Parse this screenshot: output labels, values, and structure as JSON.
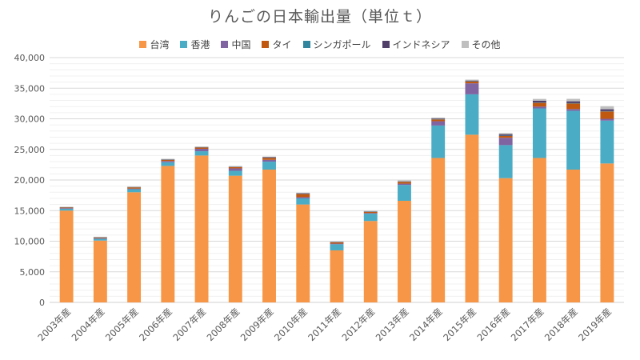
{
  "chart_data": {
    "type": "bar",
    "stacked": true,
    "title": "りんごの日本輸出量（単位ｔ）",
    "xlabel": "",
    "ylabel": "",
    "ylim": [
      0,
      40000
    ],
    "yticks": [
      0,
      5000,
      10000,
      15000,
      20000,
      25000,
      30000,
      35000,
      40000
    ],
    "ytick_labels": [
      "0",
      "5,000",
      "10,000",
      "15,000",
      "20,000",
      "25,000",
      "30,000",
      "35,000",
      "40,000"
    ],
    "grid": true,
    "legend_position": "top-center",
    "categories": [
      "2003年産",
      "2004年産",
      "2005年産",
      "2006年産",
      "2007年産",
      "2008年産",
      "2009年産",
      "2010年産",
      "2011年産",
      "2012年産",
      "2013年産",
      "2014年産",
      "2015年産",
      "2016年産",
      "2017年産",
      "2018年産",
      "2019年産"
    ],
    "series": [
      {
        "name": "台湾",
        "color": "#F79646",
        "values": [
          15000,
          10100,
          18000,
          22300,
          24000,
          20700,
          21700,
          16000,
          8500,
          13300,
          16600,
          23600,
          27400,
          20300,
          23600,
          21700,
          22700
        ]
      },
      {
        "name": "香港",
        "color": "#4BACC6",
        "values": [
          300,
          300,
          500,
          600,
          700,
          800,
          1300,
          1000,
          1000,
          1200,
          2600,
          5300,
          6600,
          5400,
          8100,
          9600,
          7000
        ]
      },
      {
        "name": "中国",
        "color": "#8064A2",
        "values": [
          100,
          100,
          100,
          200,
          400,
          400,
          300,
          200,
          100,
          100,
          200,
          700,
          1800,
          1200,
          300,
          300,
          300
        ]
      },
      {
        "name": "タイ",
        "color": "#C0580F",
        "values": [
          100,
          100,
          200,
          200,
          200,
          200,
          300,
          500,
          200,
          200,
          300,
          300,
          300,
          300,
          600,
          900,
          1200
        ]
      },
      {
        "name": "シンガポール",
        "color": "#31859C",
        "values": [
          30,
          30,
          30,
          30,
          30,
          30,
          30,
          30,
          30,
          30,
          30,
          50,
          50,
          50,
          50,
          60,
          60
        ]
      },
      {
        "name": "インドネシア",
        "color": "#4F3F69",
        "values": [
          30,
          30,
          30,
          50,
          50,
          50,
          100,
          100,
          50,
          50,
          50,
          100,
          100,
          200,
          300,
          300,
          300
        ]
      },
      {
        "name": "その他",
        "color": "#BFBFBF",
        "values": [
          70,
          70,
          70,
          80,
          100,
          100,
          100,
          100,
          70,
          70,
          150,
          150,
          150,
          250,
          300,
          400,
          500
        ]
      }
    ]
  }
}
